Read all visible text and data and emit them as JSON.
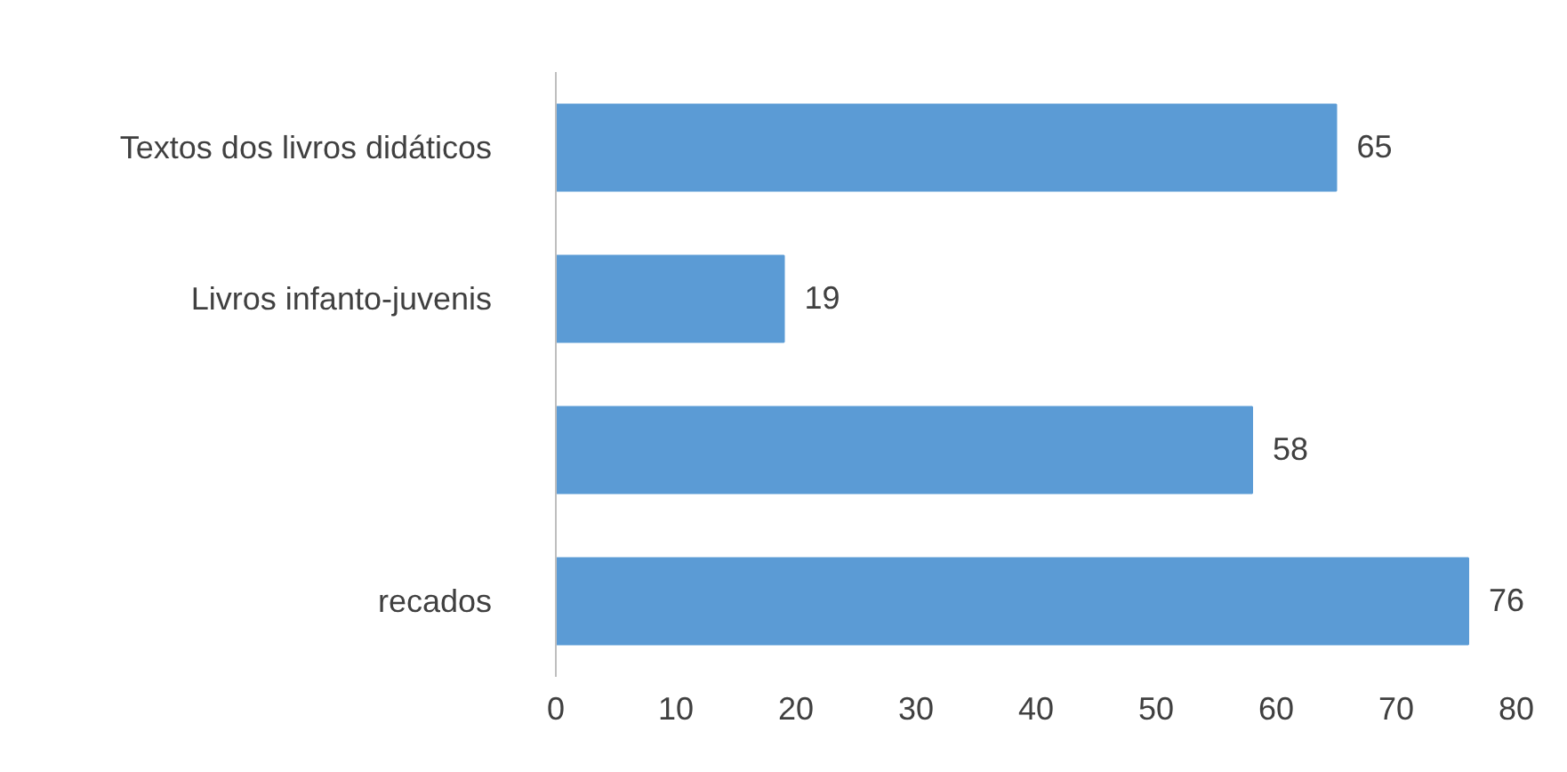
{
  "chart_data": {
    "type": "bar",
    "orientation": "horizontal",
    "categories": [
      "Textos dos livros didáticos",
      "Livros infanto-juvenis",
      null,
      "recados"
    ],
    "values": [
      65,
      19,
      58,
      76
    ],
    "color": "#5b9bd5",
    "xlim": [
      0,
      80
    ],
    "xticks": [
      0,
      10,
      20,
      30,
      40,
      50,
      60,
      70,
      80
    ],
    "data_labels": true
  }
}
